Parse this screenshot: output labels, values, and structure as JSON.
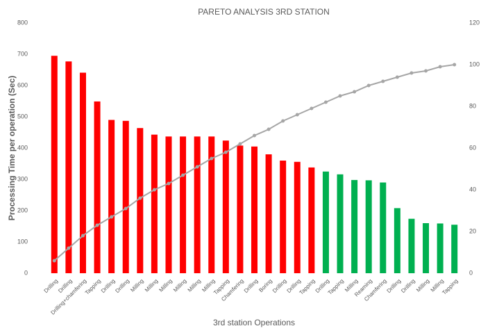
{
  "chart_data": {
    "type": "pareto",
    "title": "PARETO ANALYSIS 3RD STATION",
    "x_label": "3rd station Operations",
    "y_label": "Processing Time per operation (Sec)",
    "categories": [
      "Drilling",
      "Drilling",
      "Drilling+chamfering",
      "Tapping",
      "Drilling",
      "Drilling",
      "Milling",
      "Milling",
      "Milling",
      "Milling",
      "Milling",
      "Milling",
      "Tapping",
      "Chamfering",
      "Drilling",
      "Boring",
      "Drilling",
      "Drilling",
      "Tapping",
      "Drilling",
      "Tapping",
      "Milling",
      "Reaming",
      "Chamfering",
      "Drilling",
      "Drilling",
      "Milling",
      "Milling",
      "Tapping"
    ],
    "series": [
      {
        "values": [
          695,
          677,
          641,
          549,
          490,
          487,
          464,
          443,
          437,
          437,
          437,
          437,
          424,
          408,
          405,
          380,
          360,
          356,
          338,
          325,
          316,
          298,
          297,
          290,
          208,
          174,
          160,
          159,
          155
        ],
        "colors": [
          "#ff0000",
          "#ff0000",
          "#ff0000",
          "#ff0000",
          "#ff0000",
          "#ff0000",
          "#ff0000",
          "#ff0000",
          "#ff0000",
          "#ff0000",
          "#ff0000",
          "#ff0000",
          "#ff0000",
          "#ff0000",
          "#ff0000",
          "#ff0000",
          "#ff0000",
          "#ff0000",
          "#ff0000",
          "#00b050",
          "#00b050",
          "#00b050",
          "#00b050",
          "#00b050",
          "#00b050",
          "#00b050",
          "#00b050",
          "#00b050",
          "#00b050"
        ]
      },
      {
        "values": [
          6,
          12,
          18,
          23,
          27,
          31,
          36,
          40,
          43,
          47,
          51,
          55,
          58,
          62,
          66,
          69,
          73,
          76,
          79,
          82,
          85,
          87,
          90,
          92,
          94,
          96,
          97,
          99,
          100
        ],
        "color": "#a6a6a6",
        "axis": "y2"
      }
    ],
    "ylim": [
      0,
      800
    ],
    "yticks": [
      0,
      100,
      200,
      300,
      400,
      500,
      600,
      700,
      800
    ],
    "y2lim": [
      0,
      120
    ],
    "y2ticks": [
      0,
      20,
      40,
      60,
      80,
      100,
      120
    ]
  }
}
